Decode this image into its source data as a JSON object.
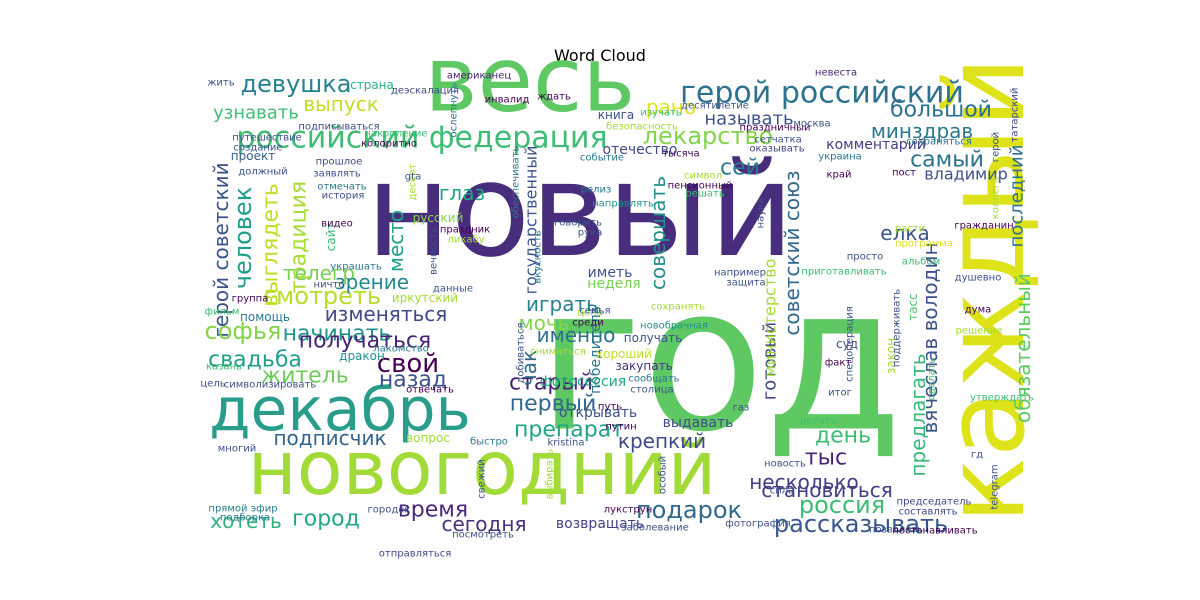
{
  "chart_data": {
    "type": "wordcloud",
    "title": "Word Cloud",
    "palette": "viridis",
    "words": [
      {
        "text": "год",
        "color": "#5ec962"
      },
      {
        "text": "новый",
        "color": "#472d7b"
      },
      {
        "text": "весь",
        "color": "#5ec962"
      },
      {
        "text": "каждый",
        "color": "#dde318"
      },
      {
        "text": "новогодний",
        "color": "#a2da37"
      },
      {
        "text": "декабрь",
        "color": "#2a9d8a"
      },
      {
        "text": "российский федерация",
        "color": "#3fbc73"
      },
      {
        "text": "герой российский",
        "color": "#2c728e"
      },
      {
        "text": "герой советский",
        "color": "#3b528b"
      },
      {
        "text": "вячеслав володин",
        "color": "#3b528b"
      },
      {
        "text": "советский союз",
        "color": "#31688e"
      },
      {
        "text": "обязательный",
        "color": "#5ec962"
      },
      {
        "text": "девушка",
        "color": "#26828e"
      },
      {
        "text": "лекарство",
        "color": "#84d44b"
      },
      {
        "text": "рассказывать",
        "color": "#39568c"
      },
      {
        "text": "россия",
        "color": "#3dbc74"
      },
      {
        "text": "подарок",
        "color": "#31688e"
      },
      {
        "text": "несколько",
        "color": "#433e85"
      },
      {
        "text": "смотреть",
        "color": "#b5de2b"
      },
      {
        "text": "софья",
        "color": "#84d44b"
      },
      {
        "text": "начинать",
        "color": "#21918c"
      },
      {
        "text": "свадьба",
        "color": "#1f9f88"
      },
      {
        "text": "человек",
        "color": "#1f9e89"
      },
      {
        "text": "выглядеть",
        "color": "#bddf26"
      },
      {
        "text": "традиция",
        "color": "#a8db34"
      },
      {
        "text": "препарат",
        "color": "#20a486"
      },
      {
        "text": "минздрав",
        "color": "#2a788e"
      },
      {
        "text": "самый",
        "color": "#2c718e"
      },
      {
        "text": "большой",
        "color": "#2d708e"
      },
      {
        "text": "елка",
        "color": "#3a548c"
      },
      {
        "text": "день",
        "color": "#3fbc73"
      },
      {
        "text": "подписчик",
        "color": "#33638d"
      },
      {
        "text": "город",
        "color": "#22a785"
      },
      {
        "text": "время",
        "color": "#482878"
      },
      {
        "text": "хотеть",
        "color": "#2db27d"
      },
      {
        "text": "сегодня",
        "color": "#46327e"
      },
      {
        "text": "становиться",
        "color": "#424086"
      },
      {
        "text": "крепкий",
        "color": "#3e4a89"
      },
      {
        "text": "первый",
        "color": "#31688e"
      },
      {
        "text": "старый",
        "color": "#481f70"
      },
      {
        "text": "чак",
        "color": "#31688e"
      },
      {
        "text": "мочь",
        "color": "#84d44b"
      },
      {
        "text": "играть",
        "color": "#26828e"
      },
      {
        "text": "именно",
        "color": "#2d708e"
      },
      {
        "text": "свой",
        "color": "#440154"
      },
      {
        "text": "назад",
        "color": "#3b528b"
      },
      {
        "text": "житель",
        "color": "#6ccd5a"
      },
      {
        "text": "получаться",
        "color": "#482475"
      },
      {
        "text": "изменяться",
        "color": "#3e4a89"
      },
      {
        "text": "телегр",
        "color": "#7ad151"
      },
      {
        "text": "зрение",
        "color": "#23898e"
      },
      {
        "text": "место",
        "color": "#20a386"
      },
      {
        "text": "глаз",
        "color": "#20a486"
      },
      {
        "text": "совершать",
        "color": "#21918c"
      },
      {
        "text": "сей",
        "color": "#287c8e"
      },
      {
        "text": "рано",
        "color": "#dde318"
      },
      {
        "text": "называть",
        "color": "#3b528b"
      },
      {
        "text": "выпуск",
        "color": "#bddf26"
      },
      {
        "text": "узнавать",
        "color": "#3fbc73"
      },
      {
        "text": "тыс",
        "color": "#482475"
      },
      {
        "text": "готовый",
        "color": "#3e4a89"
      },
      {
        "text": "предлагать",
        "color": "#37b878"
      },
      {
        "text": "последний",
        "color": "#2d708e"
      },
      {
        "text": "министерство",
        "color": "#a5db36"
      },
      {
        "text": "государственный",
        "color": "#3b528b"
      },
      {
        "text": "победитель",
        "color": "#2a788e"
      },
      {
        "text": "владимир",
        "color": "#3b528b"
      },
      {
        "text": "комментарий",
        "color": "#433e85"
      },
      {
        "text": "проект",
        "color": "#34608d"
      },
      {
        "text": "страна",
        "color": "#2db27d"
      },
      {
        "text": "неделя",
        "color": "#7ad151"
      },
      {
        "text": "иметь",
        "color": "#3b528b"
      },
      {
        "text": "иркутский",
        "color": "#a5db36"
      },
      {
        "text": "дракон",
        "color": "#21918c"
      },
      {
        "text": "хороший",
        "color": "#bddf26"
      },
      {
        "text": "закупать",
        "color": "#46337e"
      },
      {
        "text": "получать",
        "color": "#3b528b"
      },
      {
        "text": "фотосессия",
        "color": "#22a785"
      },
      {
        "text": "открывать",
        "color": "#3b528b"
      },
      {
        "text": "выдавать",
        "color": "#3e4c8a"
      },
      {
        "text": "вопрос",
        "color": "#a0da39"
      },
      {
        "text": "возвращать",
        "color": "#414487"
      },
      {
        "text": "закон",
        "color": "#a5db36"
      },
      {
        "text": "тасс",
        "color": "#54c568"
      },
      {
        "text": "суд",
        "color": "#3b528b"
      },
      {
        "text": "русский",
        "color": "#84d44b"
      },
      {
        "text": "сайт",
        "color": "#3fbc73"
      },
      {
        "text": "помощь",
        "color": "#2a788e"
      },
      {
        "text": "отечество",
        "color": "#3e4a89"
      },
      {
        "text": "книга",
        "color": "#3b528b"
      },
      {
        "text": "инвалид",
        "color": "#440154"
      },
      {
        "text": "американец",
        "color": "#482475"
      },
      {
        "text": "невеста",
        "color": "#482475"
      },
      {
        "text": "десятилетие",
        "color": "#3b528b"
      },
      {
        "text": "праздничный",
        "color": "#440154"
      },
      {
        "text": "гражданин",
        "color": "#440154"
      },
      {
        "text": "альбом",
        "color": "#3fbc73"
      },
      {
        "text": "программа",
        "color": "#dde318"
      },
      {
        "text": "дума",
        "color": "#440154"
      },
      {
        "text": "татарский",
        "color": "#3e4a89"
      },
      {
        "text": "герой",
        "color": "#3b528b"
      },
      {
        "text": "коллега",
        "color": "#a5db36"
      },
      {
        "text": "сохраняться",
        "color": "#2c728e"
      },
      {
        "text": "украина",
        "color": "#2a788e"
      },
      {
        "text": "тысяча",
        "color": "#440154"
      },
      {
        "text": "сетчатка",
        "color": "#3b528b"
      },
      {
        "text": "оказывать",
        "color": "#3e4a89"
      },
      {
        "text": "изучать",
        "color": "#3fbc73"
      },
      {
        "text": "безопасность",
        "color": "#a5db36"
      },
      {
        "text": "ждать",
        "color": "#440154"
      },
      {
        "text": "деэскалация",
        "color": "#3e4a89"
      },
      {
        "text": "подписываться",
        "color": "#3e4a89"
      },
      {
        "text": "жить",
        "color": "#3b528b"
      },
      {
        "text": "путешествие",
        "color": "#3b528b"
      },
      {
        "text": "создание",
        "color": "#3b528b"
      },
      {
        "text": "прошлое",
        "color": "#3e4a89"
      },
      {
        "text": "заявлять",
        "color": "#3b528b"
      },
      {
        "text": "должный",
        "color": "#3b528b"
      },
      {
        "text": "колоритно",
        "color": "#440154"
      },
      {
        "text": "накопление",
        "color": "#3fbc73"
      },
      {
        "text": "ослепнуть",
        "color": "#2a788e"
      },
      {
        "text": "отмечать",
        "color": "#2a788e"
      },
      {
        "text": "история",
        "color": "#3b528b"
      },
      {
        "text": "видео",
        "color": "#440154"
      },
      {
        "text": "десерт",
        "color": "#a5db36"
      },
      {
        "text": "gta",
        "color": "#3b528b"
      },
      {
        "text": "событие",
        "color": "#2a788e"
      },
      {
        "text": "релиз",
        "color": "#2a788e"
      },
      {
        "text": "направлять",
        "color": "#21918c"
      },
      {
        "text": "праздник",
        "color": "#440154"
      },
      {
        "text": "ликабу",
        "color": "#a5db36"
      },
      {
        "text": "говорить",
        "color": "#3b528b"
      },
      {
        "text": "рука",
        "color": "#3b528b"
      },
      {
        "text": "пенсионный",
        "color": "#440154"
      },
      {
        "text": "решать",
        "color": "#3fbc73"
      },
      {
        "text": "символ",
        "color": "#a5db36"
      },
      {
        "text": "край",
        "color": "#440154"
      },
      {
        "text": "пост",
        "color": "#440154"
      },
      {
        "text": "расти",
        "color": "#a5db36"
      },
      {
        "text": "наука",
        "color": "#3b528b"
      },
      {
        "text": "просто",
        "color": "#3b528b"
      },
      {
        "text": "приготавливать",
        "color": "#3fbc73"
      },
      {
        "text": "например",
        "color": "#3b528b"
      },
      {
        "text": "защита",
        "color": "#3b528b"
      },
      {
        "text": "украшать",
        "color": "#2a788e"
      },
      {
        "text": "ничто",
        "color": "#3b528b"
      },
      {
        "text": "группа",
        "color": "#440154"
      },
      {
        "text": "данные",
        "color": "#3b528b"
      },
      {
        "text": "фильм",
        "color": "#3fbc73"
      },
      {
        "text": "цена",
        "color": "#a5db36"
      },
      {
        "text": "семья",
        "color": "#3b528b"
      },
      {
        "text": "среди",
        "color": "#440154"
      },
      {
        "text": "сохранять",
        "color": "#a5db36"
      },
      {
        "text": "новобрачная",
        "color": "#21918c"
      },
      {
        "text": "сниматься",
        "color": "#a5db36"
      },
      {
        "text": "сообщать",
        "color": "#2a788e"
      },
      {
        "text": "столица",
        "color": "#3b528b"
      },
      {
        "text": "лакомство",
        "color": "#2a788e"
      },
      {
        "text": "казань",
        "color": "#3fbc73"
      },
      {
        "text": "цель",
        "color": "#3b528b"
      },
      {
        "text": "символизировать",
        "color": "#3b528b"
      },
      {
        "text": "отвечать",
        "color": "#440154"
      },
      {
        "text": "добиваться",
        "color": "#3b528b"
      },
      {
        "text": "газ",
        "color": "#3b528b"
      },
      {
        "text": "путин",
        "color": "#440154"
      },
      {
        "text": "kristina",
        "color": "#3b528b"
      },
      {
        "text": "быстро",
        "color": "#2a788e"
      },
      {
        "text": "многий",
        "color": "#3b528b"
      },
      {
        "text": "прямой эфир",
        "color": "#2a788e"
      },
      {
        "text": "подборка",
        "color": "#2a788e"
      },
      {
        "text": "городок",
        "color": "#3b528b"
      },
      {
        "text": "отправляться",
        "color": "#3e4a89"
      },
      {
        "text": "посмотреть",
        "color": "#3b528b"
      },
      {
        "text": "лукструн",
        "color": "#440154"
      },
      {
        "text": "заболевание",
        "color": "#3b528b"
      },
      {
        "text": "фотография",
        "color": "#3b528b"
      },
      {
        "text": "позволять",
        "color": "#3b528b"
      },
      {
        "text": "постанавливать",
        "color": "#440154"
      },
      {
        "text": "председатель",
        "color": "#3e4a89"
      },
      {
        "text": "составлять",
        "color": "#3e4a89"
      },
      {
        "text": "сила",
        "color": "#3b528b"
      },
      {
        "text": "новость",
        "color": "#3b528b"
      },
      {
        "text": "гд",
        "color": "#3b528b"
      },
      {
        "text": "утверждать",
        "color": "#3fbc73"
      },
      {
        "text": "итог",
        "color": "#3b528b"
      },
      {
        "text": "делать",
        "color": "#3fbc73"
      },
      {
        "text": "факт",
        "color": "#440154"
      },
      {
        "text": "спецоперация",
        "color": "#3b528b"
      },
      {
        "text": "поддерживать",
        "color": "#3b528b"
      },
      {
        "text": "решение",
        "color": "#a5db36"
      },
      {
        "text": "душевно",
        "color": "#3b528b"
      },
      {
        "text": "путь",
        "color": "#440154"
      },
      {
        "text": "москва",
        "color": "#3b528b"
      },
      {
        "text": "вкусность",
        "color": "#2a788e"
      },
      {
        "text": "обеспечивать",
        "color": "#2a788e"
      },
      {
        "text": "выбирать",
        "color": "#a5db36"
      },
      {
        "text": "свежий",
        "color": "#3b528b"
      },
      {
        "text": "особый",
        "color": "#3b528b"
      },
      {
        "text": "telegram",
        "color": "#3b528b"
      },
      {
        "text": "сделать",
        "color": "#3fbc73"
      },
      {
        "text": "вечность",
        "color": "#3b528b"
      }
    ]
  }
}
